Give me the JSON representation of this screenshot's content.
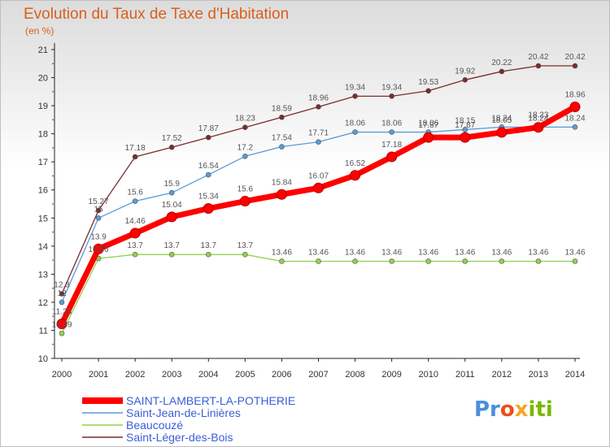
{
  "chart_data": {
    "type": "line",
    "title": "Evolution du Taux de Taxe d'Habitation",
    "subtitle": "(en %)",
    "x": [
      "2000",
      "2001",
      "2002",
      "2003",
      "2004",
      "2005",
      "2006",
      "2007",
      "2008",
      "2009",
      "2010",
      "2011",
      "2012",
      "2013",
      "2014"
    ],
    "ylim": [
      10,
      21
    ],
    "yticks": [
      10,
      11,
      12,
      13,
      14,
      15,
      16,
      17,
      18,
      19,
      20,
      21
    ],
    "grid": false,
    "legend_position": "bottom-left",
    "series": [
      {
        "name": "SAINT-LAMBERT-LA-POTHERIE",
        "color": "#ff0000",
        "emphasis": true,
        "values": [
          11.23,
          13.9,
          14.46,
          15.04,
          15.34,
          15.6,
          15.84,
          16.07,
          16.52,
          17.18,
          17.87,
          17.87,
          18.05,
          18.23,
          18.96
        ],
        "labels": [
          "11.23",
          "13.9",
          "14.46",
          "15.04",
          "15.34",
          "15.6",
          "15.84",
          "16.07",
          "16.52",
          "17.18",
          "17.87",
          "17.87",
          "18.05",
          "18.23",
          "18.96"
        ]
      },
      {
        "name": "Saint-Jean-de-Linières",
        "color": "#5b9bd5",
        "values": [
          12.0,
          15.0,
          15.6,
          15.9,
          16.54,
          17.2,
          17.54,
          17.71,
          18.06,
          18.06,
          18.06,
          18.15,
          18.24,
          18.24,
          18.24
        ],
        "labels": [
          "12",
          "15",
          "15.6",
          "15.9",
          "16.54",
          "17.2",
          "17.54",
          "17.71",
          "18.06",
          "18.06",
          "18.06",
          "18.15",
          "18.24",
          "18.24",
          "18.24"
        ]
      },
      {
        "name": "Beaucouzé",
        "color": "#92d050",
        "values": [
          10.89,
          13.56,
          13.7,
          13.7,
          13.7,
          13.7,
          13.46,
          13.46,
          13.46,
          13.46,
          13.46,
          13.46,
          13.46,
          13.46,
          13.46
        ],
        "labels": [
          "10.89",
          "13.56",
          "13.7",
          "13.7",
          "13.7",
          "13.7",
          "13.46",
          "13.46",
          "13.46",
          "13.46",
          "13.46",
          "13.46",
          "13.46",
          "13.46",
          "13.46"
        ]
      },
      {
        "name": "Saint-Léger-des-Bois",
        "color": "#7b2c2c",
        "values": [
          12.3,
          15.27,
          17.18,
          17.52,
          17.87,
          18.23,
          18.59,
          18.96,
          19.34,
          19.34,
          19.53,
          19.92,
          20.22,
          20.42,
          20.42
        ],
        "labels": [
          "12.3",
          "15.27",
          "17.18",
          "17.52",
          "17.87",
          "18.23",
          "18.59",
          "18.96",
          "19.34",
          "19.34",
          "19.53",
          "19.92",
          "20.22",
          "20.42",
          "20.42"
        ]
      }
    ]
  },
  "brand": {
    "logo_text": [
      "Pr",
      "o",
      "x",
      "iti"
    ]
  }
}
